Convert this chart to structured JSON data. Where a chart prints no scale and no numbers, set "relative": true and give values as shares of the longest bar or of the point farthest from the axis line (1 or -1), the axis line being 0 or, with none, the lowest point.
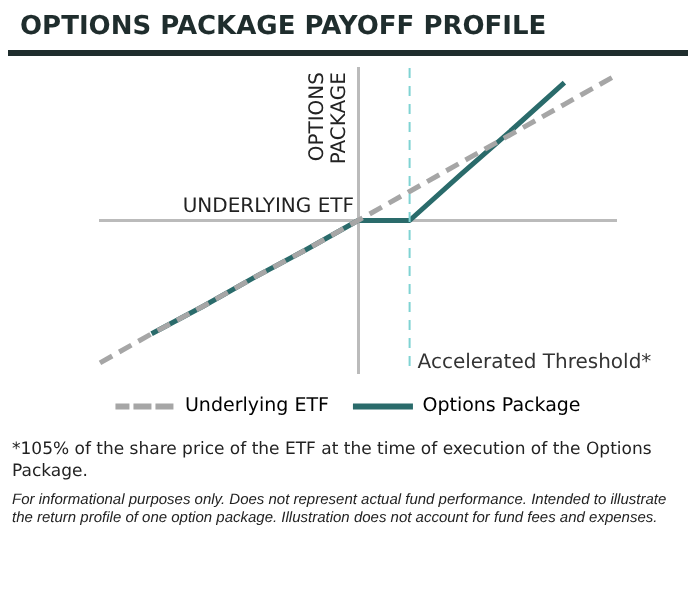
{
  "chart_data": {
    "type": "line",
    "title": "OPTIONS PACKAGE PAYOFF PROFILE",
    "xlabel": "UNDERLYING ETF",
    "ylabel": "OPTIONS PACKAGE",
    "relative": true,
    "grid": false,
    "legend": "bottom",
    "marker": "none",
    "categories": [
      null,
      null,
      null,
      null,
      null,
      null,
      null,
      null,
      null,
      null,
      null
    ],
    "series": [
      {
        "name": "Underlying ETF",
        "color": "#a6a6a6",
        "line_style": "dashed",
        "values": [
          -0.98,
          -0.78,
          -0.59,
          -0.39,
          -0.2,
          0,
          0.2,
          0.4,
          0.6,
          0.8,
          1
        ]
      },
      {
        "name": "Options Package",
        "color": "#2a6b6b",
        "line_style": "solid",
        "values": [
          null,
          -0.78,
          -0.59,
          -0.39,
          -0.2,
          0,
          0,
          0.32,
          0.63,
          0.95,
          null
        ]
      }
    ],
    "annotations": [
      "Accelerated Threshold*",
      "*105% of the share price of the ETF at the time of execution of the Options Package.",
      "For informational purposes only. Does not represent actual fund performance. Intended to illustrate the return profile of one option package. Illustration does not account for fund fees and expenses."
    ]
  }
}
